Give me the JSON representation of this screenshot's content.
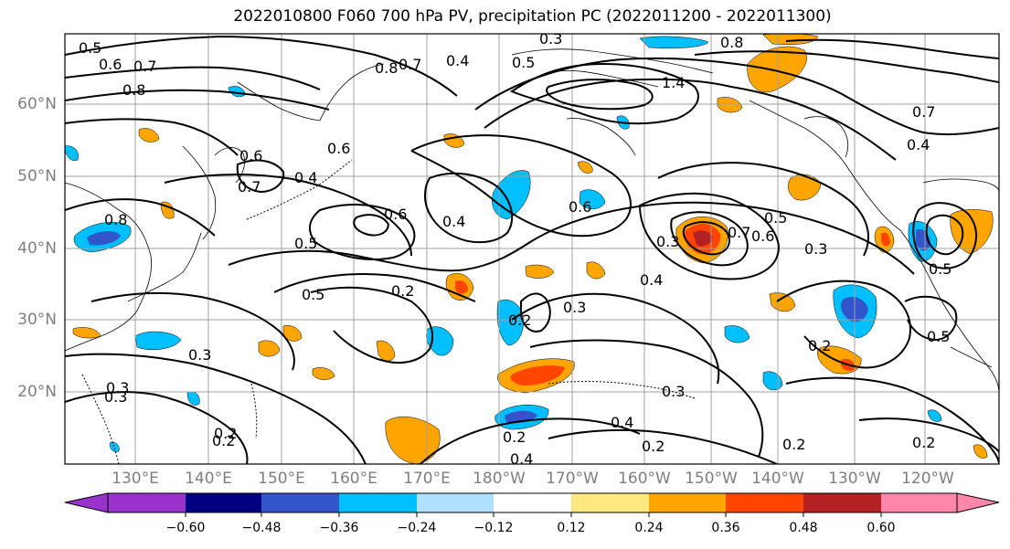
{
  "title": "2022010800 F060 700 hPa PV, precipitation PC (2022011200 - 2022011300)",
  "lat_labels": [
    "60°N",
    "50°N",
    "40°N",
    "30°N",
    "20°N"
  ],
  "lon_labels": [
    "130°E",
    "140°E",
    "150°E",
    "160°E",
    "170°E",
    "180°W",
    "170°W",
    "160°W",
    "150°W",
    "140°W",
    "130°W",
    "120°W"
  ],
  "contour_labels": [
    "0.5",
    "0.6",
    "0.7",
    "0.8",
    "0.8",
    "0.7",
    "0.4",
    "0.5",
    "0.3",
    "0.8",
    "1.4",
    "0.7",
    "0.4",
    "0.6",
    "0.7",
    "0.6",
    "0.4",
    "0.6",
    "0.5",
    "0.4",
    "0.6",
    "0.3",
    "0.7",
    "0.6",
    "0.5",
    "0.3",
    "0.5",
    "0.2",
    "0.4",
    "0.3",
    "0.2",
    "0.5",
    "0.3",
    "0.3",
    "0.2",
    "0.2",
    "0.4",
    "0.2",
    "0.4",
    "0.3",
    "0.2",
    "0.2",
    "0.2",
    "0.3",
    "0.2",
    "0.5",
    "0.8"
  ],
  "colorbar": {
    "tick_labels": [
      "−0.60",
      "−0.48",
      "−0.36",
      "−0.24",
      "−0.12",
      "0.12",
      "0.24",
      "0.36",
      "0.48",
      "0.60"
    ],
    "colors": [
      "#9933cc",
      "#000080",
      "#3355cc",
      "#00bfff",
      "#b0e0ff",
      "#ffffff",
      "#ffe880",
      "#ffa500",
      "#ff4500",
      "#b22222",
      "#ff88aa"
    ]
  },
  "colors": {
    "contour": "#000000",
    "grid": "#a0a0a0",
    "axis_labels": "#7f7f7f",
    "coast": "#000000"
  }
}
